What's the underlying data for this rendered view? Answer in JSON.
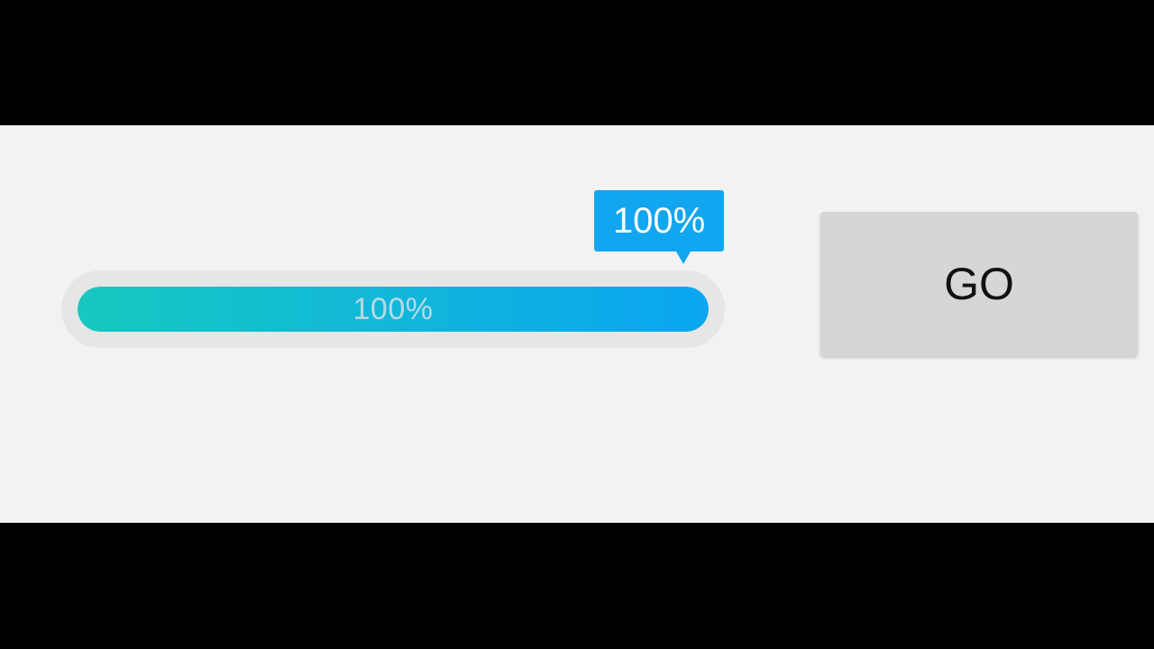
{
  "progress": {
    "value": 1.0,
    "bar_label": "100%",
    "tooltip_label": "100%"
  },
  "button": {
    "label": "GO"
  },
  "colors": {
    "fill_start": "#17c8c0",
    "fill_end": "#0aa6f2",
    "tooltip_bg": "#12a6f0",
    "button_bg": "#d6d6d6"
  }
}
